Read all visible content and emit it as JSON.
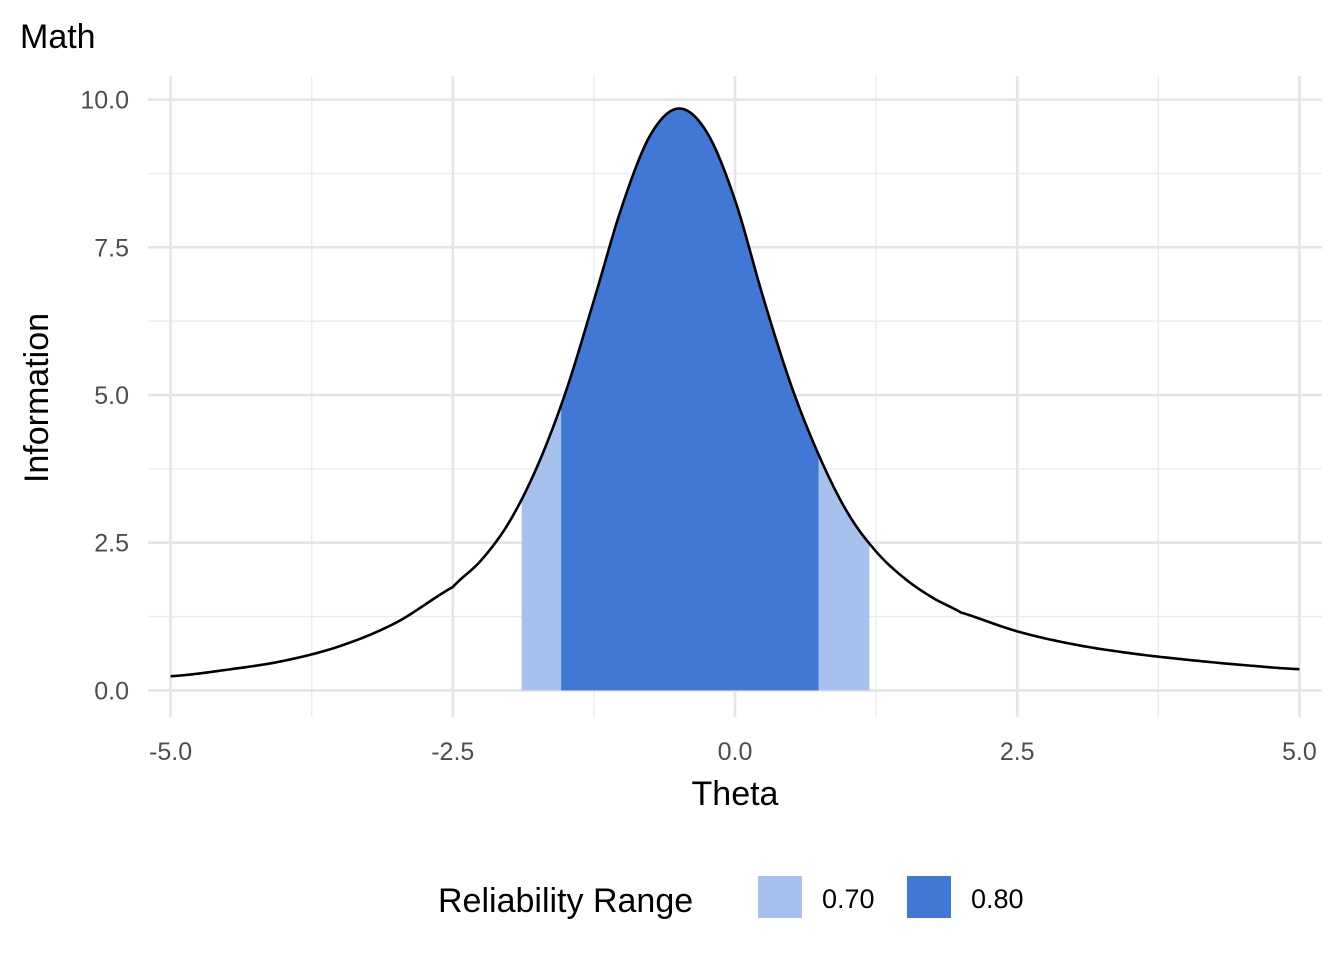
{
  "chart_data": {
    "type": "area",
    "title": "Math",
    "xlabel": "Theta",
    "ylabel": "Information",
    "xlim": [
      -5.2,
      5.2
    ],
    "ylim": [
      -0.45,
      10.4
    ],
    "x_ticks": [
      -5.0,
      -2.5,
      0.0,
      2.5,
      5.0
    ],
    "x_tick_labels": [
      "-5.0",
      "-2.5",
      "0.0",
      "2.5",
      "5.0"
    ],
    "y_ticks": [
      0.0,
      2.5,
      5.0,
      7.5,
      10.0
    ],
    "y_tick_labels": [
      "0.0",
      "2.5",
      "5.0",
      "7.5",
      "10.0"
    ],
    "grid": true,
    "curve": {
      "x": [
        -5.0,
        -4.5,
        -4.0,
        -3.5,
        -3.0,
        -2.5,
        -2.25,
        -2.0,
        -1.75,
        -1.5,
        -1.25,
        -1.0,
        -0.75,
        -0.5,
        -0.25,
        0.0,
        0.25,
        0.5,
        0.75,
        1.0,
        1.25,
        1.5,
        1.75,
        2.0,
        2.5,
        3.0,
        3.5,
        4.0,
        4.5,
        5.0
      ],
      "y": [
        0.24,
        0.35,
        0.5,
        0.75,
        1.15,
        1.75,
        2.2,
        2.85,
        3.8,
        5.05,
        6.6,
        8.2,
        9.4,
        9.85,
        9.45,
        8.3,
        6.65,
        5.15,
        3.95,
        3.0,
        2.35,
        1.9,
        1.57,
        1.32,
        1.0,
        0.78,
        0.63,
        0.52,
        0.43,
        0.36
      ],
      "color": "#000000"
    },
    "series": [
      {
        "name": "0.70",
        "x_range": [
          -1.89,
          1.19
        ],
        "color": "#a6c1ee"
      },
      {
        "name": "0.80",
        "x_range": [
          -1.54,
          0.74
        ],
        "color": "#4178d6"
      }
    ],
    "legend": {
      "title": "Reliability Range",
      "position": "bottom",
      "items": [
        "0.70",
        "0.80"
      ]
    }
  }
}
